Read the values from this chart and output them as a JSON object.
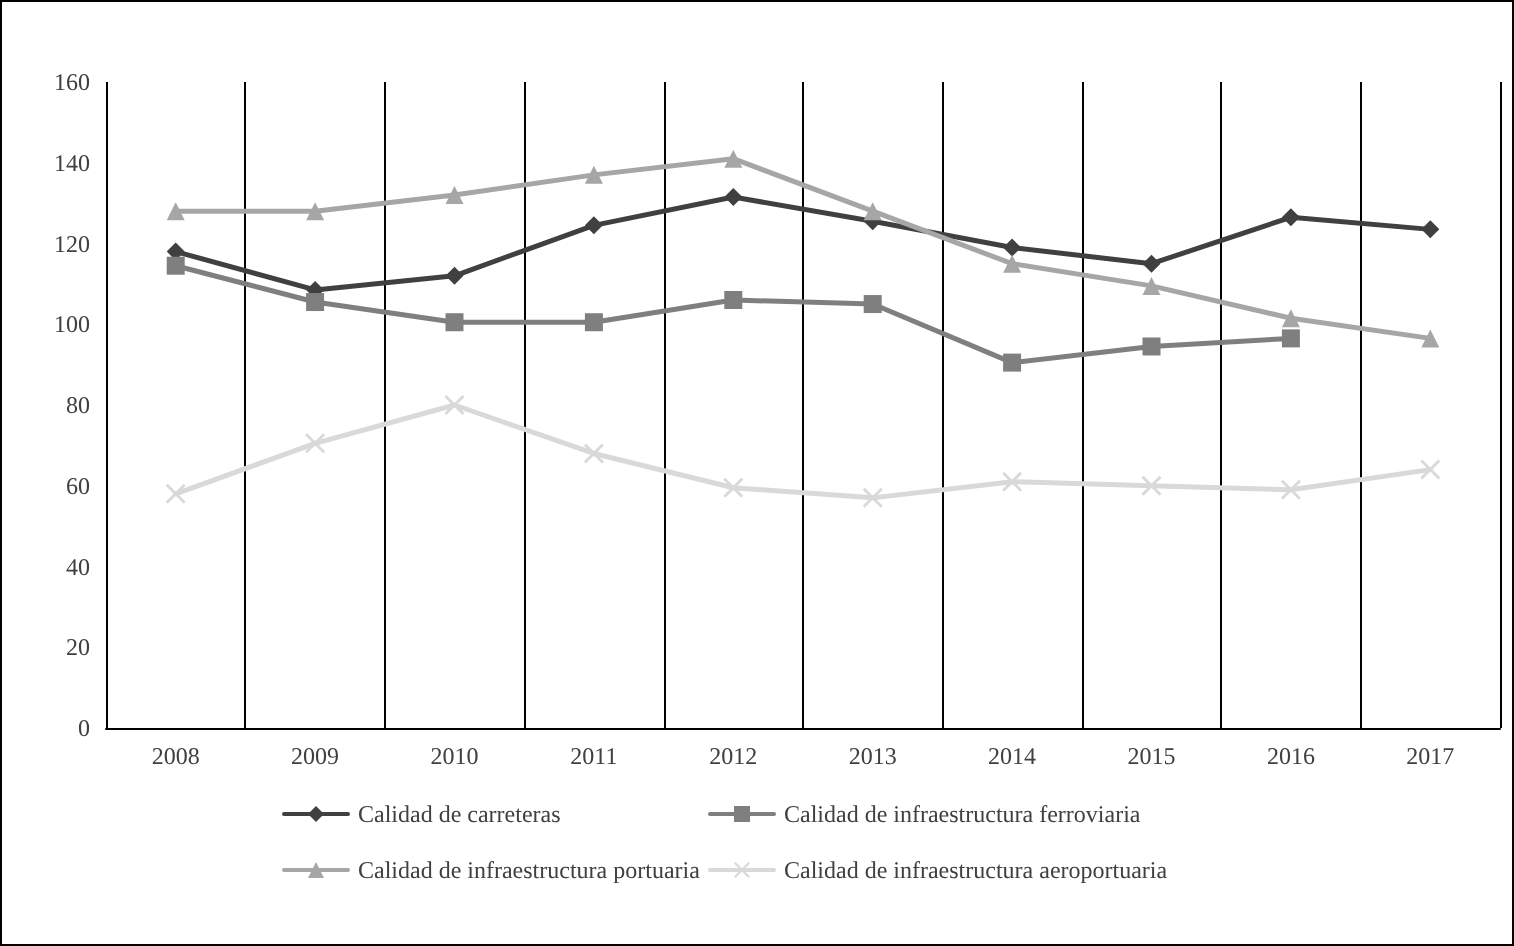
{
  "chart_data": {
    "type": "line",
    "categories": [
      "2008",
      "2009",
      "2010",
      "2011",
      "2012",
      "2013",
      "2014",
      "2015",
      "2016",
      "2017"
    ],
    "series": [
      {
        "name": "Calidad de carreteras",
        "color": "#404040",
        "marker": "diamond",
        "values": [
          118,
          108.5,
          112,
          124.5,
          131.5,
          125.5,
          119,
          115,
          126.5,
          123.5
        ]
      },
      {
        "name": "Calidad de infraestructura ferroviaria",
        "color": "#7f7f7f",
        "marker": "square",
        "values": [
          114.5,
          105.5,
          100.5,
          100.5,
          106,
          105,
          90.5,
          94.5,
          96.5,
          null
        ]
      },
      {
        "name": "Calidad de infraestructura portuaria",
        "color": "#a6a6a6",
        "marker": "triangle",
        "values": [
          128,
          128,
          132,
          137,
          141,
          128,
          115,
          109.5,
          101.5,
          96.5
        ]
      },
      {
        "name": "Calidad de infraestructura aeroportuaria",
        "color": "#d9d9d9",
        "marker": "cross",
        "values": [
          58,
          70.5,
          80,
          68,
          59.5,
          57,
          61,
          60,
          59,
          64
        ]
      }
    ],
    "ylim": [
      0,
      160
    ],
    "yticks": [
      0,
      20,
      40,
      60,
      80,
      100,
      120,
      140,
      160
    ],
    "grid": "x",
    "legend": "bottom",
    "line_style": "solid"
  }
}
